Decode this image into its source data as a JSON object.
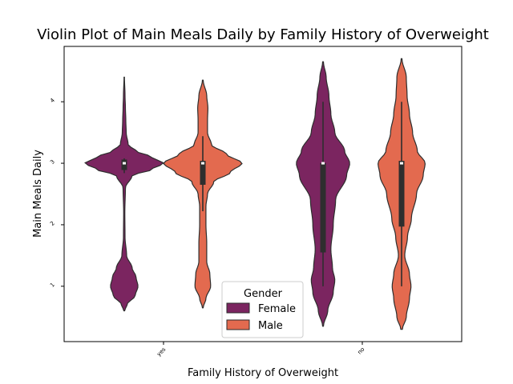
{
  "chart_data": {
    "type": "violin",
    "title": "Violin Plot of Main Meals Daily by Family History of Overweight",
    "xlabel": "Family History of Overweight",
    "ylabel": "Main Meals Daily",
    "categories": [
      "yes",
      "no"
    ],
    "yticks": [
      1,
      2,
      3,
      4
    ],
    "ylim": [
      0.1,
      4.9
    ],
    "grid": false,
    "legend": {
      "title": "Gender",
      "position": "lower-center"
    },
    "series": [
      {
        "name": "Female",
        "color": "#7b2560",
        "violins": [
          {
            "category": "yes",
            "min": 0.6,
            "max": 4.4,
            "profile": [
              [
                0.6,
                0.01
              ],
              [
                0.7,
                0.07
              ],
              [
                0.85,
                0.28
              ],
              [
                1.0,
                0.35
              ],
              [
                1.15,
                0.3
              ],
              [
                1.3,
                0.2
              ],
              [
                1.5,
                0.06
              ],
              [
                1.8,
                0.02
              ],
              [
                2.2,
                0.015
              ],
              [
                2.6,
                0.03
              ],
              [
                2.8,
                0.2
              ],
              [
                2.9,
                0.7
              ],
              [
                3.0,
                1.0
              ],
              [
                3.1,
                0.7
              ],
              [
                3.2,
                0.3
              ],
              [
                3.3,
                0.1
              ],
              [
                3.5,
                0.05
              ],
              [
                3.7,
                0.04
              ],
              [
                3.9,
                0.03
              ],
              [
                4.1,
                0.02
              ],
              [
                4.4,
                0.005
              ]
            ],
            "q1": 2.89,
            "median": 3.0,
            "q3": 3.06,
            "whisker_low": 2.84,
            "whisker_high": 3.08
          },
          {
            "category": "no",
            "min": 0.35,
            "max": 4.65,
            "profile": [
              [
                0.35,
                0.01
              ],
              [
                0.6,
                0.12
              ],
              [
                0.9,
                0.26
              ],
              [
                1.1,
                0.3
              ],
              [
                1.3,
                0.24
              ],
              [
                1.6,
                0.2
              ],
              [
                2.0,
                0.26
              ],
              [
                2.4,
                0.32
              ],
              [
                2.8,
                0.6
              ],
              [
                3.0,
                0.68
              ],
              [
                3.2,
                0.55
              ],
              [
                3.5,
                0.3
              ],
              [
                3.8,
                0.2
              ],
              [
                4.1,
                0.15
              ],
              [
                4.4,
                0.08
              ],
              [
                4.65,
                0.01
              ]
            ],
            "q1": 1.55,
            "median": 3.0,
            "q3": 3.0,
            "whisker_low": 1.0,
            "whisker_high": 4.0
          }
        ]
      },
      {
        "name": "Male",
        "color": "#e36a4f",
        "violins": [
          {
            "category": "yes",
            "min": 0.65,
            "max": 4.35,
            "profile": [
              [
                0.65,
                0.01
              ],
              [
                0.8,
                0.08
              ],
              [
                1.0,
                0.2
              ],
              [
                1.2,
                0.18
              ],
              [
                1.4,
                0.1
              ],
              [
                1.7,
                0.1
              ],
              [
                2.0,
                0.08
              ],
              [
                2.3,
                0.08
              ],
              [
                2.5,
                0.12
              ],
              [
                2.7,
                0.28
              ],
              [
                2.85,
                0.7
              ],
              [
                3.0,
                1.0
              ],
              [
                3.15,
                0.6
              ],
              [
                3.3,
                0.22
              ],
              [
                3.5,
                0.12
              ],
              [
                3.7,
                0.12
              ],
              [
                3.9,
                0.13
              ],
              [
                4.1,
                0.1
              ],
              [
                4.35,
                0.01
              ]
            ],
            "q1": 2.65,
            "median": 3.0,
            "q3": 3.04,
            "whisker_low": 2.22,
            "whisker_high": 3.44
          },
          {
            "category": "no",
            "min": 0.3,
            "max": 4.7,
            "profile": [
              [
                0.3,
                0.02
              ],
              [
                0.5,
                0.12
              ],
              [
                0.8,
                0.2
              ],
              [
                1.0,
                0.24
              ],
              [
                1.2,
                0.2
              ],
              [
                1.5,
                0.08
              ],
              [
                1.8,
                0.15
              ],
              [
                2.1,
                0.25
              ],
              [
                2.5,
                0.38
              ],
              [
                2.8,
                0.55
              ],
              [
                3.0,
                0.6
              ],
              [
                3.2,
                0.4
              ],
              [
                3.5,
                0.28
              ],
              [
                3.8,
                0.2
              ],
              [
                4.1,
                0.14
              ],
              [
                4.4,
                0.12
              ],
              [
                4.7,
                0.01
              ]
            ],
            "q1": 1.97,
            "median": 3.0,
            "q3": 3.04,
            "whisker_low": 1.0,
            "whisker_high": 4.0
          }
        ]
      }
    ]
  }
}
